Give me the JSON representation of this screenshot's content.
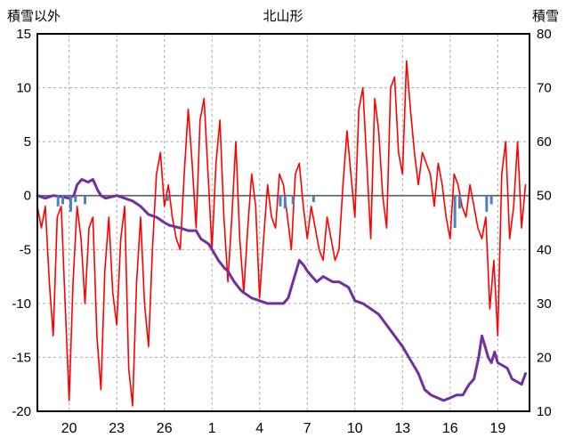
{
  "header": {
    "left_axis_title": "積雪以外",
    "title": "北山形",
    "right_axis_title": "積雪"
  },
  "colors": {
    "temperature": "#FF0000",
    "snow_depth": "#7030A0",
    "precipitation": "#4F81BD",
    "grid": "#AAAAAA",
    "zero_line": "#666666",
    "frame": "#000000",
    "text": "#000000"
  },
  "chart_data": {
    "type": "line",
    "title": "北山形",
    "left_axis": {
      "label": "積雪以外",
      "ticks": [
        15,
        10,
        5,
        0,
        -5,
        -10,
        -15,
        -20
      ],
      "range": [
        -20,
        15
      ]
    },
    "right_axis": {
      "label": "積雪",
      "ticks": [
        80,
        70,
        60,
        50,
        40,
        30,
        20,
        10
      ],
      "range": [
        10,
        80
      ]
    },
    "x_axis": {
      "tick_labels": [
        "20",
        "23",
        "26",
        "1",
        "4",
        "7",
        "10",
        "13",
        "16",
        "19"
      ],
      "tick_days": [
        2,
        5,
        8,
        11,
        14,
        17,
        20,
        23,
        26,
        29
      ],
      "range_days": [
        0,
        31
      ]
    },
    "grid": true,
    "legend": "none",
    "series": [
      {
        "name": "temperature",
        "axis": "left",
        "type": "line",
        "color": "#FF0000",
        "x0": 0,
        "dx": 0.25,
        "values": [
          -1,
          -3,
          -1,
          -8,
          -13,
          -2,
          -1,
          -10,
          -19,
          -8,
          -1,
          -4,
          -10,
          -3,
          -2,
          -13,
          -18,
          -7,
          -2,
          -9,
          -12,
          -4,
          -1,
          -16,
          -19.5,
          -8,
          -2,
          -10,
          -14,
          -5,
          2,
          4,
          -1,
          1,
          -2,
          -4,
          -5,
          2,
          8,
          3,
          -3,
          7,
          9,
          2,
          -5,
          3,
          7,
          -2,
          -8,
          -2,
          5,
          -4,
          -9,
          -3,
          2,
          -1,
          -9.5,
          -4,
          1,
          -2,
          -3,
          2,
          1,
          -2,
          -5,
          2,
          3,
          -1,
          -4,
          -1,
          -3,
          -5,
          -6,
          -2,
          -4,
          -6,
          -5,
          1,
          6,
          2,
          -2,
          8,
          10,
          3,
          -4,
          9,
          6,
          0,
          -3,
          10,
          11,
          4,
          2,
          12.5,
          8,
          4,
          1,
          4,
          3,
          2,
          -1,
          3,
          1,
          -2,
          -4,
          2,
          1,
          -1,
          -2,
          1,
          -1,
          -3,
          -4,
          -2,
          -10.5,
          -6,
          -13,
          2,
          5,
          -4,
          -1,
          5,
          -3,
          1
        ]
      },
      {
        "name": "snow_depth",
        "axis": "right",
        "type": "line",
        "color": "#7030A0",
        "points": [
          [
            0,
            50
          ],
          [
            0.5,
            49.5
          ],
          [
            1,
            50
          ],
          [
            1.5,
            49.8
          ],
          [
            2,
            49.5
          ],
          [
            2.3,
            50
          ],
          [
            2.5,
            52
          ],
          [
            2.8,
            53
          ],
          [
            3.2,
            52.5
          ],
          [
            3.5,
            53
          ],
          [
            3.8,
            51
          ],
          [
            4,
            50
          ],
          [
            4.3,
            49.5
          ],
          [
            5,
            50
          ],
          [
            5.5,
            49.5
          ],
          [
            6,
            49
          ],
          [
            6.5,
            48
          ],
          [
            7,
            46.5
          ],
          [
            7.5,
            46
          ],
          [
            8,
            45
          ],
          [
            8.3,
            44.5
          ],
          [
            9,
            44
          ],
          [
            9.5,
            43.5
          ],
          [
            10,
            43.5
          ],
          [
            10.3,
            42
          ],
          [
            10.8,
            41
          ],
          [
            11,
            40
          ],
          [
            11.4,
            38
          ],
          [
            11.8,
            36.5
          ],
          [
            12,
            36
          ],
          [
            12.4,
            34
          ],
          [
            12.8,
            32.5
          ],
          [
            13,
            32
          ],
          [
            13.5,
            31
          ],
          [
            14,
            30.5
          ],
          [
            14.5,
            30
          ],
          [
            15,
            30
          ],
          [
            15.5,
            30
          ],
          [
            15.8,
            31
          ],
          [
            16,
            33
          ],
          [
            16.3,
            36
          ],
          [
            16.5,
            38
          ],
          [
            16.8,
            37
          ],
          [
            17,
            36
          ],
          [
            17.3,
            35
          ],
          [
            17.6,
            34
          ],
          [
            18,
            35
          ],
          [
            18.3,
            34.5
          ],
          [
            18.6,
            34
          ],
          [
            19,
            34
          ],
          [
            19.3,
            33.5
          ],
          [
            19.6,
            33
          ],
          [
            20,
            30.5
          ],
          [
            20.5,
            30
          ],
          [
            21,
            29
          ],
          [
            21.5,
            28
          ],
          [
            22,
            26
          ],
          [
            22.5,
            24
          ],
          [
            23,
            22
          ],
          [
            23.4,
            20
          ],
          [
            23.8,
            18
          ],
          [
            24,
            17
          ],
          [
            24.4,
            14
          ],
          [
            24.8,
            13
          ],
          [
            25.2,
            12.5
          ],
          [
            25.6,
            12
          ],
          [
            26,
            12.5
          ],
          [
            26.4,
            13
          ],
          [
            26.8,
            13
          ],
          [
            27,
            14
          ],
          [
            27.2,
            15
          ],
          [
            27.5,
            16
          ],
          [
            27.8,
            20
          ],
          [
            28,
            24
          ],
          [
            28.2,
            22
          ],
          [
            28.4,
            20
          ],
          [
            28.6,
            19
          ],
          [
            28.8,
            21
          ],
          [
            29,
            19
          ],
          [
            29.3,
            18.5
          ],
          [
            29.6,
            18
          ],
          [
            29.9,
            16
          ],
          [
            30.2,
            15.5
          ],
          [
            30.5,
            15
          ],
          [
            30.75,
            17
          ]
        ]
      },
      {
        "name": "precipitation",
        "axis": "left",
        "type": "bar",
        "color": "#4F81BD",
        "points": [
          [
            1.3,
            1
          ],
          [
            1.6,
            0.8
          ],
          [
            2.1,
            1.5
          ],
          [
            2.4,
            0.6
          ],
          [
            3.0,
            0.8
          ],
          [
            8.2,
            0.5
          ],
          [
            15.3,
            1.0
          ],
          [
            15.6,
            1.2
          ],
          [
            16.1,
            0.8
          ],
          [
            17.4,
            0.6
          ],
          [
            26.3,
            3.0
          ],
          [
            26.6,
            1.2
          ],
          [
            28.3,
            1.5
          ],
          [
            28.6,
            0.8
          ]
        ]
      }
    ]
  }
}
